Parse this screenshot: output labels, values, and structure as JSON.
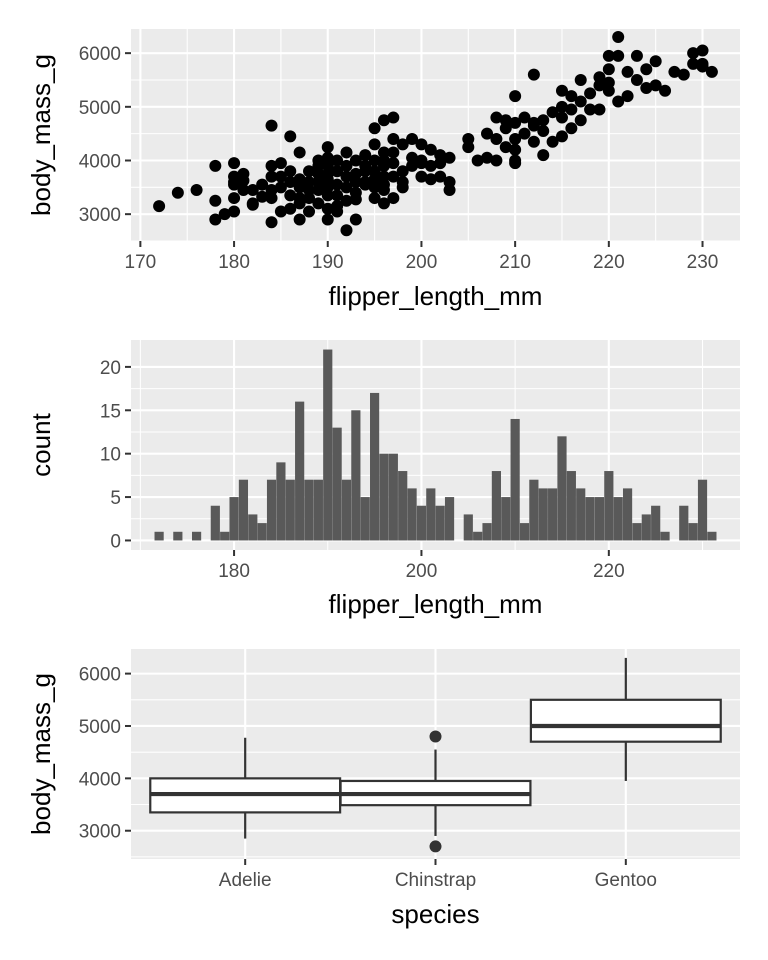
{
  "chart_data": [
    {
      "type": "scatter",
      "xlabel": "flipper_length_mm",
      "ylabel": "body_mass_g",
      "xlim": [
        169,
        234
      ],
      "ylim": [
        2500,
        6450
      ],
      "xticks": [
        170,
        180,
        190,
        200,
        210,
        220,
        230
      ],
      "yticks": [
        3000,
        4000,
        5000,
        6000
      ],
      "color": "#000000",
      "points": [
        [
          172,
          3150
        ],
        [
          174,
          3400
        ],
        [
          176,
          3450
        ],
        [
          178,
          3900
        ],
        [
          178,
          3250
        ],
        [
          178,
          2900
        ],
        [
          179,
          3000
        ],
        [
          180,
          3950
        ],
        [
          180,
          3700
        ],
        [
          180,
          3550
        ],
        [
          180,
          3600
        ],
        [
          180,
          3300
        ],
        [
          180,
          3050
        ],
        [
          181,
          3750
        ],
        [
          181,
          3625
        ],
        [
          181,
          3450
        ],
        [
          182,
          3200
        ],
        [
          182,
          3175
        ],
        [
          182,
          3450
        ],
        [
          183,
          3325
        ],
        [
          183,
          3550
        ],
        [
          184,
          3900
        ],
        [
          184,
          3700
        ],
        [
          184,
          3450
        ],
        [
          184,
          3300
        ],
        [
          184,
          2850
        ],
        [
          184,
          4650
        ],
        [
          185,
          3950
        ],
        [
          185,
          3700
        ],
        [
          185,
          3050
        ],
        [
          185,
          3500
        ],
        [
          186,
          3800
        ],
        [
          186,
          3350
        ],
        [
          186,
          3100
        ],
        [
          186,
          4450
        ],
        [
          186,
          3600
        ],
        [
          187,
          4150
        ],
        [
          187,
          3500
        ],
        [
          187,
          3300
        ],
        [
          187,
          3650
        ],
        [
          187,
          3200
        ],
        [
          187,
          2900
        ],
        [
          188,
          3800
        ],
        [
          188,
          3600
        ],
        [
          188,
          3450
        ],
        [
          188,
          3300
        ],
        [
          188,
          3050
        ],
        [
          189,
          4000
        ],
        [
          189,
          3750
        ],
        [
          189,
          3600
        ],
        [
          189,
          3900
        ],
        [
          189,
          3450
        ],
        [
          189,
          3200
        ],
        [
          190,
          4250
        ],
        [
          190,
          4050
        ],
        [
          190,
          3900
        ],
        [
          190,
          3750
        ],
        [
          190,
          3650
        ],
        [
          190,
          3500
        ],
        [
          190,
          3350
        ],
        [
          190,
          3100
        ],
        [
          190,
          2900
        ],
        [
          191,
          4000
        ],
        [
          191,
          3800
        ],
        [
          191,
          3550
        ],
        [
          191,
          3350
        ],
        [
          191,
          3150
        ],
        [
          191,
          3050
        ],
        [
          192,
          4150
        ],
        [
          192,
          3900
        ],
        [
          192,
          3700
        ],
        [
          192,
          3500
        ],
        [
          192,
          3250
        ],
        [
          192,
          2700
        ],
        [
          193,
          4000
        ],
        [
          193,
          3750
        ],
        [
          193,
          3600
        ],
        [
          193,
          3400
        ],
        [
          193,
          3275
        ],
        [
          193,
          2900
        ],
        [
          194,
          4100
        ],
        [
          194,
          3800
        ],
        [
          194,
          3550
        ],
        [
          194,
          3600
        ],
        [
          194,
          3900
        ],
        [
          195,
          4600
        ],
        [
          195,
          4300
        ],
        [
          195,
          4000
        ],
        [
          195,
          3800
        ],
        [
          195,
          3650
        ],
        [
          195,
          3500
        ],
        [
          195,
          3300
        ],
        [
          195,
          3600
        ],
        [
          196,
          4750
        ],
        [
          196,
          4150
        ],
        [
          196,
          4000
        ],
        [
          196,
          3900
        ],
        [
          196,
          3700
        ],
        [
          196,
          3550
        ],
        [
          196,
          3450
        ],
        [
          196,
          3200
        ],
        [
          197,
          4800
        ],
        [
          197,
          4400
        ],
        [
          197,
          4150
        ],
        [
          197,
          3950
        ],
        [
          197,
          3700
        ],
        [
          197,
          3300
        ],
        [
          198,
          4300
        ],
        [
          198,
          3800
        ],
        [
          198,
          3600
        ],
        [
          198,
          3500
        ],
        [
          199,
          4050
        ],
        [
          199,
          3900
        ],
        [
          199,
          4400
        ],
        [
          200,
          4300
        ],
        [
          200,
          4000
        ],
        [
          200,
          3950
        ],
        [
          200,
          3700
        ],
        [
          201,
          4200
        ],
        [
          201,
          3900
        ],
        [
          201,
          3650
        ],
        [
          202,
          4100
        ],
        [
          202,
          3950
        ],
        [
          202,
          3700
        ],
        [
          203,
          4050
        ],
        [
          203,
          3450
        ],
        [
          203,
          3600
        ],
        [
          205,
          4400
        ],
        [
          205,
          4250
        ],
        [
          206,
          4000
        ],
        [
          207,
          4500
        ],
        [
          207,
          4050
        ],
        [
          208,
          4800
        ],
        [
          208,
          4400
        ],
        [
          208,
          4000
        ],
        [
          209,
          4600
        ],
        [
          209,
          4250
        ],
        [
          209,
          4750
        ],
        [
          210,
          4700
        ],
        [
          210,
          4400
        ],
        [
          210,
          4200
        ],
        [
          210,
          4000
        ],
        [
          210,
          5200
        ],
        [
          210,
          3950
        ],
        [
          211,
          4800
        ],
        [
          211,
          4500
        ],
        [
          212,
          5600
        ],
        [
          212,
          4700
        ],
        [
          212,
          4650
        ],
        [
          212,
          4350
        ],
        [
          213,
          4750
        ],
        [
          213,
          4550
        ],
        [
          213,
          4100
        ],
        [
          214,
          4900
        ],
        [
          214,
          4350
        ],
        [
          215,
          5300
        ],
        [
          215,
          5000
        ],
        [
          215,
          4800
        ],
        [
          215,
          4450
        ],
        [
          216,
          5200
        ],
        [
          216,
          4950
        ],
        [
          216,
          4600
        ],
        [
          217,
          5500
        ],
        [
          217,
          5100
        ],
        [
          217,
          4750
        ],
        [
          218,
          5250
        ],
        [
          218,
          4950
        ],
        [
          219,
          5550
        ],
        [
          219,
          5400
        ],
        [
          219,
          4950
        ],
        [
          220,
          5950
        ],
        [
          220,
          5700
        ],
        [
          220,
          5450
        ],
        [
          220,
          5300
        ],
        [
          221,
          6300
        ],
        [
          221,
          5950
        ],
        [
          221,
          5100
        ],
        [
          222,
          5650
        ],
        [
          222,
          5200
        ],
        [
          223,
          5500
        ],
        [
          223,
          5950
        ],
        [
          224,
          5700
        ],
        [
          224,
          5350
        ],
        [
          225,
          5400
        ],
        [
          225,
          5850
        ],
        [
          226,
          5300
        ],
        [
          227,
          5650
        ],
        [
          228,
          5600
        ],
        [
          229,
          5800
        ],
        [
          229,
          6000
        ],
        [
          230,
          5750
        ],
        [
          230,
          5800
        ],
        [
          230,
          6050
        ],
        [
          231,
          5650
        ]
      ]
    },
    {
      "type": "bar",
      "xlabel": "flipper_length_mm",
      "ylabel": "count",
      "xlim": [
        169,
        234
      ],
      "ylim": [
        -1.1,
        23.1
      ],
      "xticks": [
        180,
        200,
        220
      ],
      "yticks": [
        0,
        5,
        10,
        15,
        20
      ],
      "color": "#595959",
      "bins": [
        [
          172,
          1
        ],
        [
          174,
          1
        ],
        [
          176,
          1
        ],
        [
          178,
          4
        ],
        [
          179,
          1
        ],
        [
          180,
          5
        ],
        [
          181,
          7
        ],
        [
          182,
          3
        ],
        [
          183,
          2
        ],
        [
          184,
          7
        ],
        [
          185,
          9
        ],
        [
          186,
          7
        ],
        [
          187,
          16
        ],
        [
          188,
          7
        ],
        [
          189,
          7
        ],
        [
          190,
          22
        ],
        [
          191,
          13
        ],
        [
          192,
          7
        ],
        [
          193,
          15
        ],
        [
          194,
          5
        ],
        [
          195,
          17
        ],
        [
          196,
          10
        ],
        [
          197,
          10
        ],
        [
          198,
          8
        ],
        [
          199,
          6
        ],
        [
          200,
          4
        ],
        [
          201,
          6
        ],
        [
          202,
          4
        ],
        [
          203,
          5
        ],
        [
          205,
          3
        ],
        [
          206,
          1
        ],
        [
          207,
          2
        ],
        [
          208,
          8
        ],
        [
          209,
          5
        ],
        [
          210,
          14
        ],
        [
          211,
          2
        ],
        [
          212,
          7
        ],
        [
          213,
          6
        ],
        [
          214,
          6
        ],
        [
          215,
          12
        ],
        [
          216,
          8
        ],
        [
          217,
          6
        ],
        [
          218,
          5
        ],
        [
          219,
          5
        ],
        [
          220,
          8
        ],
        [
          221,
          5
        ],
        [
          222,
          6
        ],
        [
          223,
          2
        ],
        [
          224,
          3
        ],
        [
          225,
          4
        ],
        [
          226,
          1
        ],
        [
          228,
          4
        ],
        [
          229,
          2
        ],
        [
          230,
          7
        ],
        [
          231,
          1
        ]
      ]
    },
    {
      "type": "box",
      "xlabel": "species",
      "ylabel": "body_mass_g",
      "ylim": [
        2460,
        6470
      ],
      "yticks": [
        3000,
        4000,
        5000,
        6000
      ],
      "categories": [
        "Adelie",
        "Chinstrap",
        "Gentoo"
      ],
      "boxes": [
        {
          "category": "Adelie",
          "min": 2850,
          "q1": 3350,
          "median": 3700,
          "q3": 4000,
          "max": 4775,
          "outliers": []
        },
        {
          "category": "Chinstrap",
          "min": 2900,
          "q1": 3488,
          "median": 3700,
          "q3": 3950,
          "max": 4550,
          "outliers": [
            4800,
            2700
          ]
        },
        {
          "category": "Gentoo",
          "min": 3950,
          "q1": 4700,
          "median": 5000,
          "q3": 5500,
          "max": 6300,
          "outliers": []
        }
      ]
    }
  ]
}
